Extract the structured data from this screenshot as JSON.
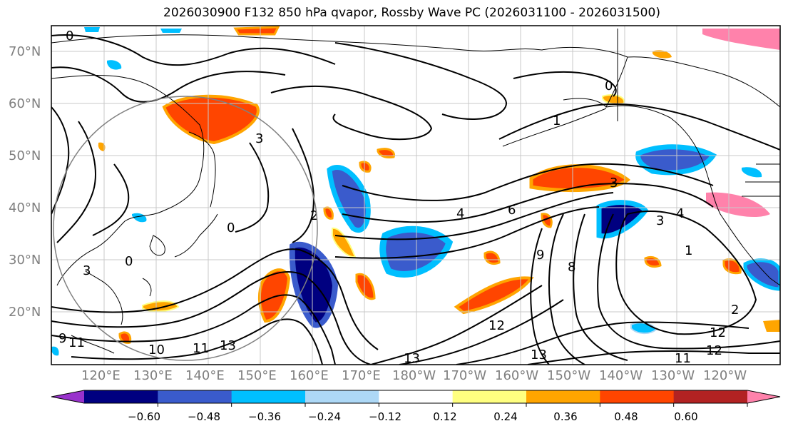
{
  "title": "2026030900 F132 850 hPa qvapor, Rossby Wave PC (2026031100 - 2026031500)",
  "lat_labels": [
    "70°N",
    "60°N",
    "50°N",
    "40°N",
    "30°N",
    "20°N"
  ],
  "lon_labels": [
    "120°E",
    "130°E",
    "140°E",
    "150°E",
    "160°E",
    "170°E",
    "180°W",
    "170°W",
    "160°W",
    "150°W",
    "140°W",
    "130°W",
    "120°W"
  ],
  "contour_labels": [
    "0",
    "0",
    "1",
    "3",
    "3",
    "0",
    "2",
    "3",
    "4",
    "6",
    "9",
    "8",
    "3",
    "4",
    "1",
    "2",
    "10",
    "11",
    "13",
    "13",
    "12",
    "12",
    "13",
    "11",
    "12",
    "9",
    "11",
    "0"
  ],
  "colorbar": {
    "colors": [
      "#9932cc",
      "#000080",
      "#3a5bcc",
      "#00bfff",
      "#add8f6",
      "#ffffff",
      "#ffff80",
      "#ffa500",
      "#ff4500",
      "#b22222",
      "#ff82ab"
    ],
    "tick_labels": [
      "−0.60",
      "−0.48",
      "−0.36",
      "−0.24",
      "−0.12",
      "0.12",
      "0.24",
      "0.36",
      "0.48",
      "0.60"
    ]
  }
}
